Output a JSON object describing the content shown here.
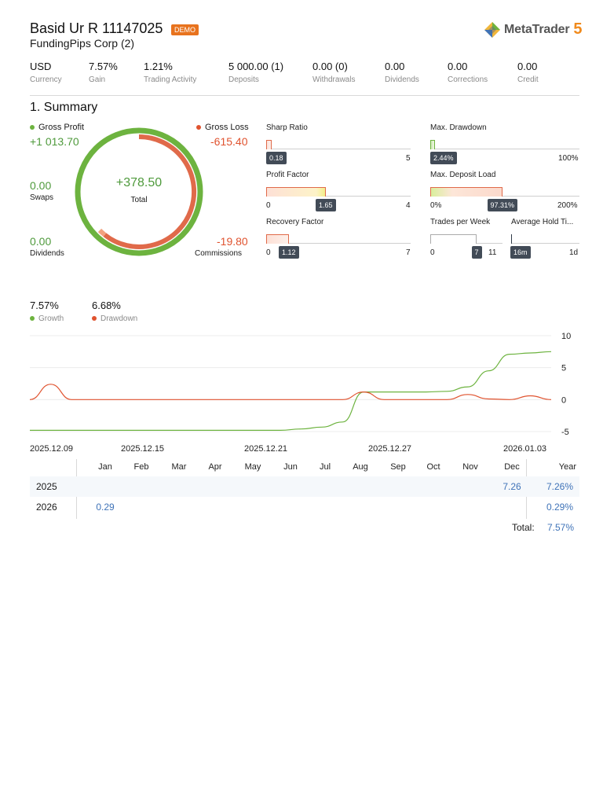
{
  "header": {
    "title": "Basid Ur R 11147025",
    "badge": "DEMO",
    "subtitle": "FundingPips Corp (2)",
    "logo_text": "MetaTrader",
    "logo_number": "5"
  },
  "stats": [
    {
      "value": "USD",
      "label": "Currency"
    },
    {
      "value": "7.57%",
      "label": "Gain"
    },
    {
      "value": "1.21%",
      "label": "Trading Activity"
    },
    {
      "value": "5 000.00 (1)",
      "label": "Deposits"
    },
    {
      "value": "0.00 (0)",
      "label": "Withdrawals"
    },
    {
      "value": "0.00",
      "label": "Dividends"
    },
    {
      "value": "0.00",
      "label": "Corrections"
    },
    {
      "value": "0.00",
      "label": "Credit"
    }
  ],
  "summary": {
    "title": "1. Summary",
    "gross_profit_label": "Gross Profit",
    "gross_profit": "+1 013.70",
    "gross_loss_label": "Gross Loss",
    "gross_loss": "-615.40",
    "swaps_value": "0.00",
    "swaps_label": "Swaps",
    "dividends_value": "0.00",
    "dividends_label": "Dividends",
    "commissions_value": "-19.80",
    "commissions_label": "Commissions",
    "total_value": "+378.50",
    "total_label": "Total",
    "donut": {
      "profit": 1013.7,
      "loss": 615.4,
      "commissions": 19.8
    }
  },
  "metrics": {
    "sharp": {
      "title": "Sharp Ratio",
      "value": "0.18",
      "min": "0",
      "max": "5",
      "fraction": 0.036
    },
    "drawdown": {
      "title": "Max. Drawdown",
      "value": "2.44%",
      "min": "",
      "max": "100%",
      "fraction": 0.0244
    },
    "profit_factor": {
      "title": "Profit Factor",
      "value": "1.65",
      "min": "0",
      "max": "4",
      "fraction": 0.4125
    },
    "deposit_load": {
      "title": "Max. Deposit Load",
      "value": "97.31%",
      "min": "0%",
      "max": "200%",
      "fraction": 0.4866
    },
    "recovery": {
      "title": "Recovery Factor",
      "value": "1.12",
      "min": "0",
      "max": "7",
      "fraction": 0.16
    },
    "trades_week": {
      "title": "Trades per Week",
      "value": "7",
      "min": "0",
      "max": "11",
      "fraction": 0.636
    },
    "hold_time": {
      "title": "Average Hold Ti...",
      "value": "16m",
      "min": "",
      "max": "1d",
      "fraction": 0.011
    }
  },
  "growth_legend": {
    "growth_value": "7.57%",
    "growth_label": "Growth",
    "drawdown_value": "6.68%",
    "drawdown_label": "Drawdown"
  },
  "colors": {
    "green": "#6db33f",
    "red": "#e0532f",
    "blue": "#3f73b8",
    "tag": "#424b57"
  },
  "chart_data": {
    "type": "line",
    "x_labels": [
      "2025.12.09",
      "2025.12.15",
      "2025.12.21",
      "2025.12.27",
      "2026.01.03"
    ],
    "ylim": [
      -5,
      10
    ],
    "y_ticks": [
      "10",
      "5",
      "0",
      "-5"
    ],
    "series": [
      {
        "name": "Growth",
        "color": "#6db33f",
        "x": [
          "2025.12.09",
          "2025.12.21",
          "2025.12.22",
          "2025.12.23",
          "2025.12.24",
          "2025.12.25",
          "2025.12.26",
          "2025.12.27",
          "2025.12.28",
          "2025.12.29",
          "2025.12.30",
          "2025.12.31",
          "2026.01.01",
          "2026.01.02",
          "2026.01.03"
        ],
        "values": [
          -4.8,
          -4.8,
          -4.6,
          -4.3,
          -3.5,
          1.2,
          1.2,
          1.2,
          1.2,
          1.3,
          2.0,
          4.5,
          7.1,
          7.3,
          7.5
        ]
      },
      {
        "name": "Drawdown",
        "color": "#e0532f",
        "x": [
          "2025.12.09",
          "2025.12.10",
          "2025.12.11",
          "2025.12.12",
          "2025.12.24",
          "2025.12.25",
          "2025.12.26",
          "2025.12.29",
          "2025.12.30",
          "2025.12.31",
          "2026.01.01",
          "2026.01.02",
          "2026.01.03"
        ],
        "values": [
          0,
          2.4,
          0,
          0,
          0,
          1.2,
          0,
          0,
          0.8,
          0.1,
          0,
          0.6,
          0
        ]
      }
    ]
  },
  "monthly": {
    "months": [
      "Jan",
      "Feb",
      "Mar",
      "Apr",
      "May",
      "Jun",
      "Jul",
      "Aug",
      "Sep",
      "Oct",
      "Nov",
      "Dec"
    ],
    "year_header": "Year",
    "rows": [
      {
        "year": "2025",
        "cells": [
          "",
          "",
          "",
          "",
          "",
          "",
          "",
          "",
          "",
          "",
          "",
          "7.26"
        ],
        "total": "7.26%"
      },
      {
        "year": "2026",
        "cells": [
          "0.29",
          "",
          "",
          "",
          "",
          "",
          "",
          "",
          "",
          "",
          "",
          ""
        ],
        "total": "0.29%"
      }
    ],
    "total_label": "Total:",
    "total_value": "7.57%"
  }
}
